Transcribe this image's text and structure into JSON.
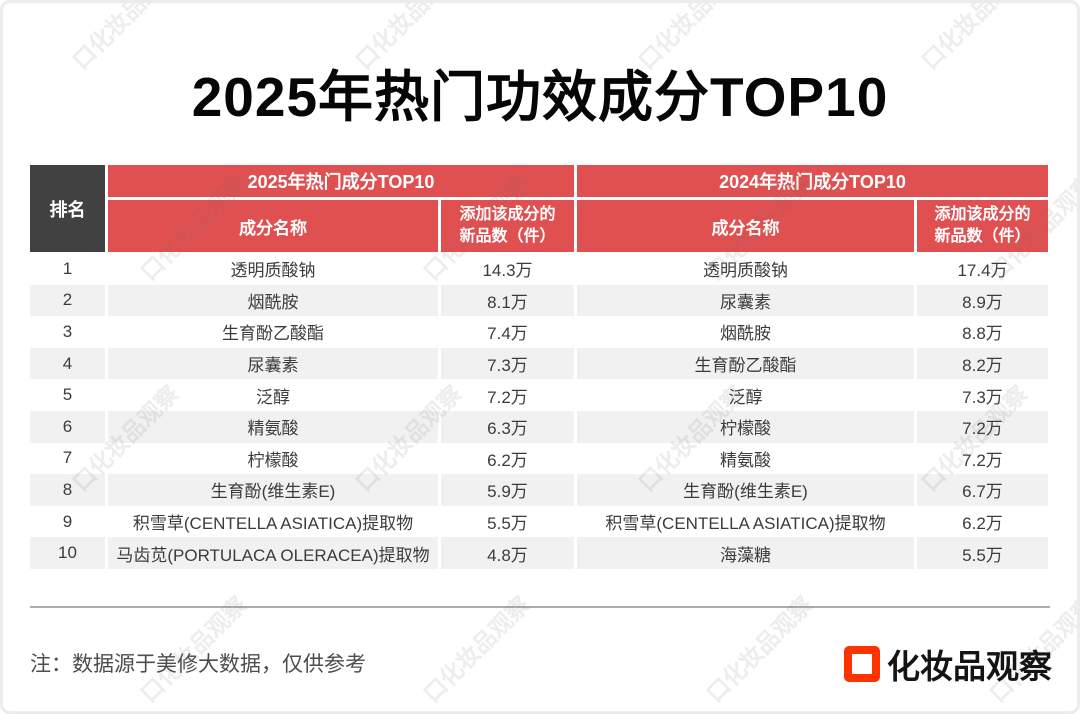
{
  "title": "2025年热门功效成分TOP10",
  "watermark_text": "口化妆品观察",
  "table": {
    "rank_header": "排名",
    "sections": [
      {
        "year_header": "2025年热门成分TOP10",
        "name_header": "成分名称",
        "count_header_line1": "添加该成分的",
        "count_header_line2": "新品数（件）"
      },
      {
        "year_header": "2024年热门成分TOP10",
        "name_header": "成分名称",
        "count_header_line1": "添加该成分的",
        "count_header_line2": "新品数（件）"
      }
    ],
    "rows": [
      {
        "rank": "1",
        "name_2025": "透明质酸钠",
        "count_2025": "14.3万",
        "name_2024": "透明质酸钠",
        "count_2024": "17.4万"
      },
      {
        "rank": "2",
        "name_2025": "烟酰胺",
        "count_2025": "8.1万",
        "name_2024": "尿囊素",
        "count_2024": "8.9万"
      },
      {
        "rank": "3",
        "name_2025": "生育酚乙酸酯",
        "count_2025": "7.4万",
        "name_2024": "烟酰胺",
        "count_2024": "8.8万"
      },
      {
        "rank": "4",
        "name_2025": "尿囊素",
        "count_2025": "7.3万",
        "name_2024": "生育酚乙酸酯",
        "count_2024": "8.2万"
      },
      {
        "rank": "5",
        "name_2025": "泛醇",
        "count_2025": "7.2万",
        "name_2024": "泛醇",
        "count_2024": "7.3万"
      },
      {
        "rank": "6",
        "name_2025": "精氨酸",
        "count_2025": "6.3万",
        "name_2024": "柠檬酸",
        "count_2024": "7.2万"
      },
      {
        "rank": "7",
        "name_2025": "柠檬酸",
        "count_2025": "6.2万",
        "name_2024": "精氨酸",
        "count_2024": "7.2万"
      },
      {
        "rank": "8",
        "name_2025": "生育酚(维生素E)",
        "count_2025": "5.9万",
        "name_2024": "生育酚(维生素E)",
        "count_2024": "6.7万"
      },
      {
        "rank": "9",
        "name_2025": "积雪草(CENTELLA ASIATICA)提取物",
        "count_2025": "5.5万",
        "name_2024": "积雪草(CENTELLA ASIATICA)提取物",
        "count_2024": "6.2万"
      },
      {
        "rank": "10",
        "name_2025": "马齿苋(PORTULACA OLERACEA)提取物",
        "count_2025": "4.8万",
        "name_2024": "海藻糖",
        "count_2024": "5.5万"
      }
    ]
  },
  "footer": {
    "note": "注：数据源于美修大数据，仅供参考",
    "logo_text": "化妆品观察"
  },
  "colors": {
    "header_red": "#E15051",
    "rank_dark": "#414141",
    "zebra_gray": "#F1F1F1",
    "logo_red": "#FF3300"
  },
  "chart_data": {
    "type": "table",
    "title": "2025年热门功效成分TOP10",
    "columns": [
      "排名",
      "2025年热门成分TOP10 成分名称",
      "2025年 添加该成分的新品数（件）",
      "2024年热门成分TOP10 成分名称",
      "2024年 添加该成分的新品数（件）"
    ],
    "rows": [
      [
        1,
        "透明质酸钠",
        "14.3万",
        "透明质酸钠",
        "17.4万"
      ],
      [
        2,
        "烟酰胺",
        "8.1万",
        "尿囊素",
        "8.9万"
      ],
      [
        3,
        "生育酚乙酸酯",
        "7.4万",
        "烟酰胺",
        "8.8万"
      ],
      [
        4,
        "尿囊素",
        "7.3万",
        "生育酚乙酸酯",
        "8.2万"
      ],
      [
        5,
        "泛醇",
        "7.2万",
        "泛醇",
        "7.3万"
      ],
      [
        6,
        "精氨酸",
        "6.3万",
        "柠檬酸",
        "7.2万"
      ],
      [
        7,
        "柠檬酸",
        "6.2万",
        "精氨酸",
        "7.2万"
      ],
      [
        8,
        "生育酚(维生素E)",
        "5.9万",
        "生育酚(维生素E)",
        "6.7万"
      ],
      [
        9,
        "积雪草(CENTELLA ASIATICA)提取物",
        "5.5万",
        "积雪草(CENTELLA ASIATICA)提取物",
        "6.2万"
      ],
      [
        10,
        "马齿苋(PORTULACA OLERACEA)提取物",
        "4.8万",
        "海藻糖",
        "5.5万"
      ]
    ],
    "source_note": "注：数据源于美修大数据，仅供参考"
  }
}
